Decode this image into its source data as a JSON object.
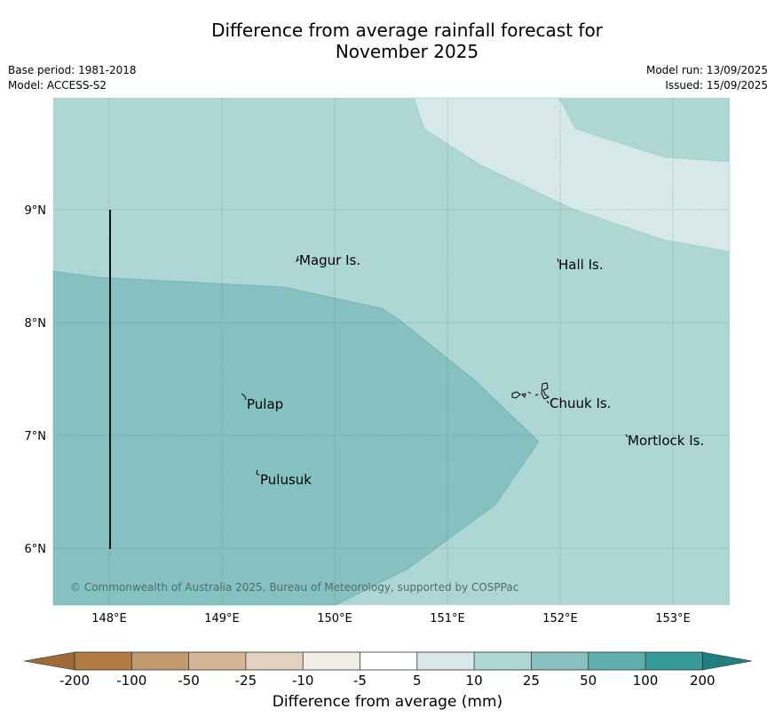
{
  "title_line1": "Difference from average rainfall forecast for",
  "title_line2": "November 2025",
  "base_period": "Base period: 1981-2018",
  "model": "Model: ACCESS-S2",
  "model_run": "Model run: 13/09/2025",
  "issued": "Issued: 15/09/2025",
  "lat_ticks": [
    "9°N",
    "8°N",
    "7°N",
    "6°N"
  ],
  "lon_ticks": [
    "148°E",
    "149°E",
    "150°E",
    "151°E",
    "152°E",
    "153°E"
  ],
  "places": [
    {
      "name": "Magur Is."
    },
    {
      "name": "Hall Is."
    },
    {
      "name": "Pulap"
    },
    {
      "name": "Chuuk Is."
    },
    {
      "name": "Mortlock Is."
    },
    {
      "name": "Pulusuk"
    }
  ],
  "copyright": "© Commonwealth of Australia 2025, Bureau of Meteorology, supported by COSPPac",
  "colorbar": {
    "ticks": [
      "-200",
      "-100",
      "-50",
      "-25",
      "-10",
      "-5",
      "5",
      "10",
      "25",
      "50",
      "100",
      "200"
    ],
    "colors": [
      "#9e6a36",
      "#b27a44",
      "#c39a70",
      "#d5b496",
      "#e4d2c1",
      "#f0ece6",
      "#ffffff",
      "#d6e9e8",
      "#aed6d5",
      "#85c1c0",
      "#5eaead",
      "#369a98",
      "#217f7d"
    ],
    "label": "Difference from average (mm)"
  },
  "map_fill_colors": {
    "band_5_10": "#d6e9e8",
    "band_10_25": "#aed6d5",
    "band_25_50": "#85c1c0"
  }
}
